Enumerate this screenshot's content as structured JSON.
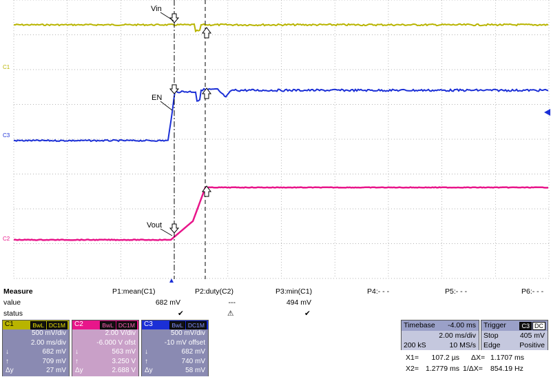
{
  "scope": {
    "labels": {
      "vin": "Vin",
      "en": "EN",
      "vout": "Vout"
    },
    "channel_markers": {
      "c1": "C1",
      "c2": "C2",
      "c3": "C3"
    },
    "colors": {
      "c1": "#b8b400",
      "c2": "#e8168a",
      "c3": "#1b2fd6",
      "grid": "#9a9a9a"
    }
  },
  "measure": {
    "title": "Measure",
    "row_value": "value",
    "row_status": "status",
    "columns": [
      {
        "name": "P1:mean(C1)",
        "value": "682 mV",
        "status": "✔"
      },
      {
        "name": "P2:duty(C2)",
        "value": "---",
        "status": "⚠"
      },
      {
        "name": "P3:min(C1)",
        "value": "494 mV",
        "status": "✔"
      },
      {
        "name": "P4:- - -",
        "value": "",
        "status": ""
      },
      {
        "name": "P5:- - -",
        "value": "",
        "status": ""
      },
      {
        "name": "P6:- - -",
        "value": "",
        "status": ""
      }
    ]
  },
  "channels": [
    {
      "name": "C1",
      "tags": [
        "BwL",
        "DC1M"
      ],
      "row1": "500 mV/div",
      "row2": "2.00 ms/div",
      "down": "682 mV",
      "up": "709 mV",
      "dy": "27 mV",
      "dy_label": "Δy",
      "color": "#b8b400",
      "bg": "#8a8ab2"
    },
    {
      "name": "C2",
      "tags": [
        "BwL",
        "DC1M"
      ],
      "row1": "2.00 V/div",
      "row2": "-6.000 V ofst",
      "down": "563 mV",
      "up": "3.250 V",
      "dy": "2.688 V",
      "dy_label": "Δy",
      "color": "#e8168a",
      "bg": "#c9a0c8"
    },
    {
      "name": "C3",
      "tags": [
        "BwL",
        "DC1M"
      ],
      "row1": "500 mV/div",
      "row2": "-10 mV offset",
      "down": "682 mV",
      "up": "740 mV",
      "dy": "58 mV",
      "dy_label": "Δy",
      "color": "#1b2fd6",
      "bg": "#8a8ab2"
    }
  ],
  "timebase": {
    "title": "Timebase",
    "value": "-4.00 ms",
    "rate": "2.00 ms/div",
    "samples": "200 kS",
    "sps": "10 MS/s"
  },
  "trigger": {
    "title": "Trigger",
    "ch": "C3",
    "coupling": "DC",
    "mode": "Stop",
    "level": "405 mV",
    "type": "Edge",
    "slope": "Positive"
  },
  "cursors": {
    "x1_label": "X1=",
    "x1": "107.2 µs",
    "dx_label": "ΔX=",
    "dx": "1.1707 ms",
    "x2_label": "X2=",
    "x2": "1.2779 ms",
    "f_label": "1/ΔX=",
    "f": "854.19 Hz"
  }
}
